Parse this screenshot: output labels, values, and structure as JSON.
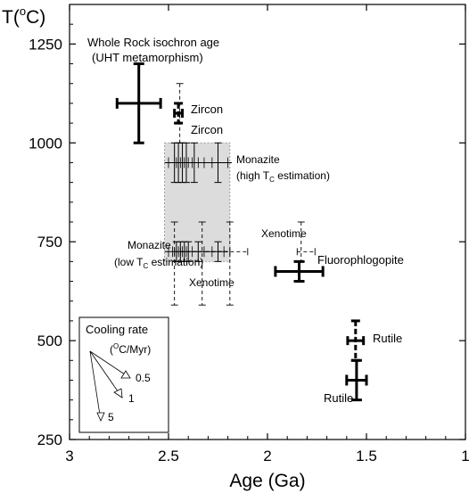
{
  "chart_data": {
    "type": "scatter",
    "title": "",
    "xlabel": "Age (Ga)",
    "ylabel_main": "T(",
    "ylabel_sup": "o",
    "ylabel_end": "C)",
    "xlim": [
      3,
      1
    ],
    "ylim": [
      250,
      1350
    ],
    "x_ticks": [
      3,
      2.5,
      2,
      1.5,
      1
    ],
    "x_tick_labels": [
      "3",
      "2.5",
      "2",
      "1.5",
      "1"
    ],
    "y_ticks": [
      250,
      500,
      750,
      1000,
      1250
    ],
    "y_tick_labels": [
      "250",
      "500",
      "750",
      "1000",
      "1250"
    ],
    "grid": false,
    "shaded_region": {
      "x0": 2.52,
      "x1": 2.19,
      "y0": 700,
      "y1": 1000
    },
    "thick_points": [
      {
        "x": 2.65,
        "xerr": 0.11,
        "y": 1100,
        "yerr": 100
      },
      {
        "x": 1.84,
        "xerr": 0.12,
        "y": 675,
        "yerr": 25
      },
      {
        "x": 1.55,
        "xerr": 0.05,
        "y": 400,
        "yerr": 50
      }
    ],
    "dash_points": [
      {
        "x": 2.45,
        "xerr": 0.02,
        "y": 1075,
        "yerr": 25
      },
      {
        "x": 1.555,
        "xerr": 0.04,
        "y": 500,
        "yerr": 50
      }
    ],
    "thin_dashed_points": [
      {
        "x": 2.443,
        "y0": 1000,
        "y1": 1150
      },
      {
        "x": 1.83,
        "x0": 1.85,
        "x1": 1.76,
        "y": 725,
        "y0": 700,
        "y1": 800
      },
      {
        "x": 2.33,
        "x0": 2.47,
        "x1": 2.19,
        "y": 725,
        "y0": 590,
        "y1": 800
      },
      {
        "x": 2.33,
        "x0": 2.44,
        "x1": 2.1,
        "y": 725
      }
    ],
    "monazite_high": {
      "y": 950,
      "x_span": [
        2.52,
        2.18
      ],
      "error_bars": [
        {
          "x": 2.47,
          "yerr": 50
        },
        {
          "x": 2.45,
          "yerr": 50
        },
        {
          "x": 2.43,
          "yerr": 50
        },
        {
          "x": 2.41,
          "yerr": 50
        },
        {
          "x": 2.37,
          "yerr": 50
        },
        {
          "x": 2.25,
          "yerr": 50
        }
      ],
      "minor_ticks": [
        2.5,
        2.46,
        2.44,
        2.42,
        2.4,
        2.38,
        2.35,
        2.32,
        2.28,
        2.2
      ]
    },
    "monazite_low": {
      "y": 725,
      "x_span": [
        2.52,
        2.2
      ],
      "error_bars": [
        {
          "x": 2.46,
          "yerr": 25
        },
        {
          "x": 2.44,
          "yerr": 25
        },
        {
          "x": 2.42,
          "yerr": 25
        },
        {
          "x": 2.4,
          "yerr": 25
        },
        {
          "x": 2.35,
          "yerr": 25
        },
        {
          "x": 2.25,
          "yerr": 25
        }
      ],
      "minor_ticks": [
        2.5,
        2.48,
        2.45,
        2.43,
        2.41,
        2.38,
        2.32,
        2.28,
        2.22
      ]
    },
    "annotations": {
      "whole_rock_1": "Whole Rock isochron age",
      "whole_rock_2": "(UHT metamorphism)",
      "zircon_1": "Zircon",
      "zircon_2": "Zircon",
      "monazite_high_1": "Monazite",
      "monazite_high_2_pre": "(high T",
      "monazite_high_2_sub": "C",
      "monazite_high_2_post": " estimation)",
      "monazite_low_1": "Monazite",
      "monazite_low_2_pre": "(low T",
      "monazite_low_2_sub": "C",
      "monazite_low_2_post": " estimation)",
      "xenotime_1": "Xenotime",
      "xenotime_2": "Xenotime",
      "fluorophlogopite": "Fluorophlogopite",
      "rutile_1": "Rutile",
      "rutile_2": "Rutile"
    },
    "legend": {
      "placement": "bottom-left",
      "title": "Cooling rate",
      "unit_pre": "(",
      "unit_sup": "O",
      "unit_post": "C/Myr)",
      "rates": [
        "0.5",
        "1",
        "5"
      ]
    }
  }
}
